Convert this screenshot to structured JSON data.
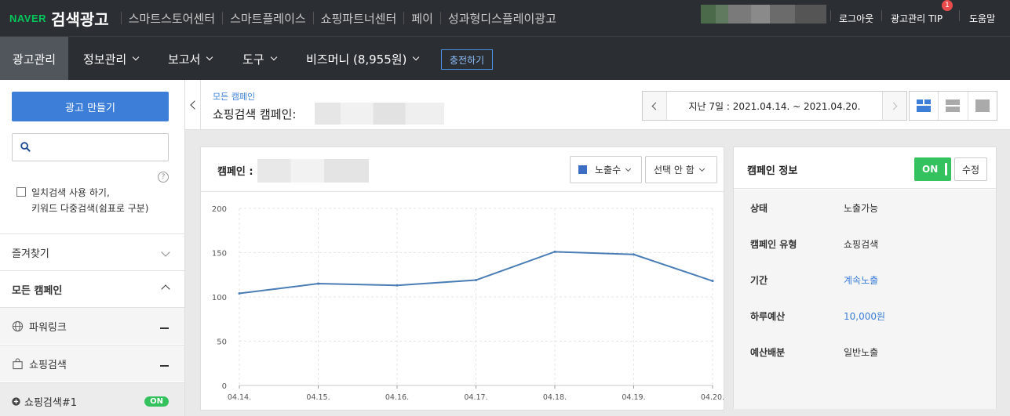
{
  "topbar": {
    "logo_naver": "NAVER",
    "logo_brand": "검색광고",
    "nav": [
      "스마트스토어센터",
      "스마트플레이스",
      "쇼핑파트너센터",
      "페이",
      "성과형디스플레이광고"
    ],
    "logout": "로그아웃",
    "tip": "광고관리 TIP",
    "tip_badge": "1",
    "help": "도움말"
  },
  "subnav": {
    "active": "광고관리",
    "menus": [
      "정보관리",
      "보고서",
      "도구",
      "비즈머니 (8,955원)"
    ],
    "charge": "충전하기"
  },
  "sidebar": {
    "create_button": "광고 만들기",
    "search_placeholder": "",
    "help": "?",
    "exact_search_line1": "일치검색 사용 하기,",
    "exact_search_line2": "키워드 다중검색(쉼표로 구분)",
    "favorites": "즐겨찾기",
    "all_campaigns": "모든 캠페인",
    "powerlink": "파워링크",
    "shopping": "쇼핑검색",
    "campaign_item": "쇼핑검색#1",
    "campaign_status": "ON"
  },
  "header": {
    "breadcrumb": "모든 캠페인",
    "title": "쇼핑검색 캠페인:",
    "date_range": "지난 7일 : 2021.04.14. ~ 2021.04.20."
  },
  "chart_panel": {
    "title": "캠페인 :",
    "metric_select": "노출수",
    "compare_select": "선택 안 함"
  },
  "chart_data": {
    "type": "line",
    "categories": [
      "04.14.",
      "04.15.",
      "04.16.",
      "04.17.",
      "04.18.",
      "04.19.",
      "04.20."
    ],
    "series": [
      {
        "name": "노출수",
        "values": [
          104,
          115,
          113,
          119,
          151,
          148,
          118
        ]
      }
    ],
    "ylim": [
      0,
      200
    ],
    "yticks": [
      0,
      50,
      100,
      150,
      200
    ],
    "grid": true,
    "color": "#4a7db5"
  },
  "info_panel": {
    "title": "캠페인 정보",
    "toggle": "ON",
    "edit": "수정",
    "rows": [
      {
        "key": "상태",
        "value": "노출가능"
      },
      {
        "key": "캠페인 유형",
        "value": "쇼핑검색"
      },
      {
        "key": "기간",
        "value": "계속노출"
      },
      {
        "key": "하루예산",
        "value": "10,000원"
      },
      {
        "key": "예산배분",
        "value": "일반노출"
      }
    ]
  }
}
